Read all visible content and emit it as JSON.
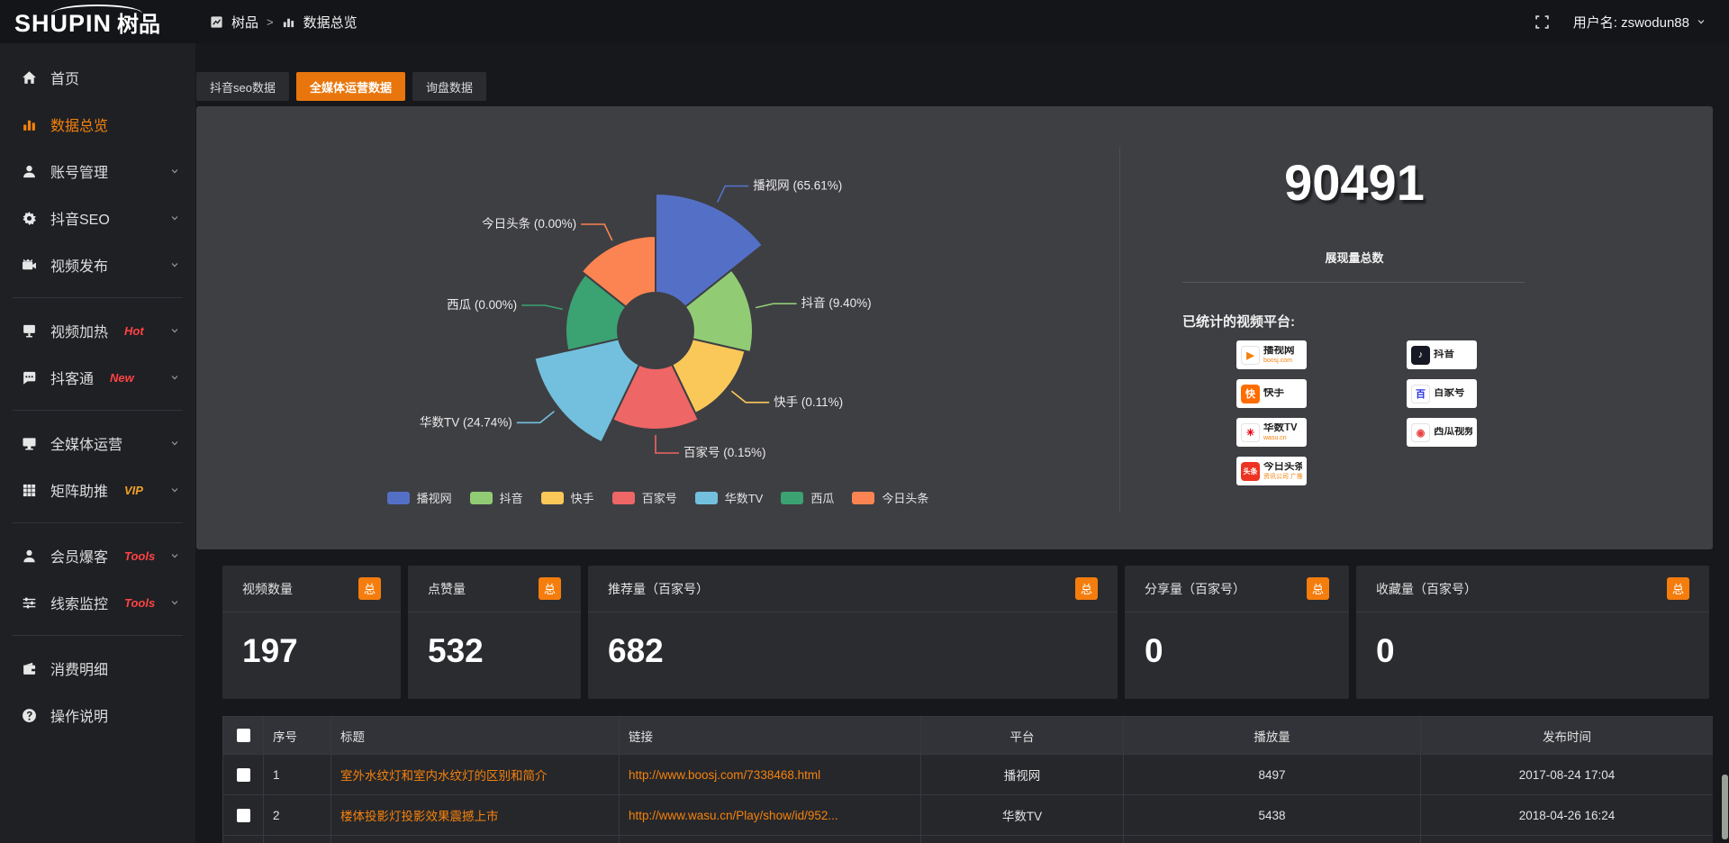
{
  "topbar": {
    "logo_main": "SHUPIN",
    "logo_sub": "树品",
    "breadcrumb": {
      "part1": "树品",
      "sep": ">",
      "part2": "数据总览"
    },
    "user_label": "用户名: zswodun88"
  },
  "sidebar": {
    "groups": [
      {
        "items": [
          {
            "label": "首页",
            "icon": "home-icon",
            "active": false,
            "chevron": false
          },
          {
            "label": "数据总览",
            "icon": "bar-chart-icon",
            "active": true,
            "chevron": false
          },
          {
            "label": "账号管理",
            "icon": "user-icon",
            "active": false,
            "chevron": true
          },
          {
            "label": "抖音SEO",
            "icon": "gear-icon",
            "active": false,
            "chevron": true
          },
          {
            "label": "视频发布",
            "icon": "video-icon",
            "active": false,
            "chevron": true
          }
        ]
      },
      {
        "items": [
          {
            "label": "视频加热",
            "icon": "screen-icon",
            "tag": "Hot",
            "tag_color": "#ff4343",
            "chevron": true
          },
          {
            "label": "抖客通",
            "icon": "chat-icon",
            "tag": "New",
            "tag_color": "#ff4343",
            "chevron": true
          }
        ]
      },
      {
        "items": [
          {
            "label": "全媒体运营",
            "icon": "monitor-icon",
            "chevron": true
          },
          {
            "label": "矩阵助推",
            "icon": "grid-icon",
            "tag": "VIP",
            "tag_color": "#f0a125",
            "chevron": true
          }
        ]
      },
      {
        "items": [
          {
            "label": "会员爆客",
            "icon": "member-icon",
            "tag": "Tools",
            "tag_color": "#ff4343",
            "chevron": true
          },
          {
            "label": "线索监控",
            "icon": "sliders-icon",
            "tag": "Tools",
            "tag_color": "#ff4343",
            "chevron": true
          }
        ]
      },
      {
        "items": [
          {
            "label": "消费明细",
            "icon": "wallet-icon",
            "chevron": false
          },
          {
            "label": "操作说明",
            "icon": "help-icon",
            "chevron": false
          }
        ]
      }
    ]
  },
  "tabs": [
    {
      "label": "抖音seo数据",
      "active": false
    },
    {
      "label": "全媒体运营数据",
      "active": true
    },
    {
      "label": "询盘数据",
      "active": false
    }
  ],
  "chart_data": {
    "type": "pie",
    "style": "nightingale-rose-donut",
    "label_format": "{name} ({percent}%)",
    "legend_position": "bottom",
    "items": [
      {
        "name": "播视网",
        "percent": 65.61,
        "color": "#5470c6"
      },
      {
        "name": "抖音",
        "percent": 9.4,
        "color": "#91cc75"
      },
      {
        "name": "快手",
        "percent": 0.11,
        "color": "#fac858"
      },
      {
        "name": "百家号",
        "percent": 0.15,
        "color": "#ee6666"
      },
      {
        "name": "华数TV",
        "percent": 24.74,
        "color": "#73c0de"
      },
      {
        "name": "西瓜",
        "percent": 0.0,
        "color": "#3ba272"
      },
      {
        "name": "今日头条",
        "percent": 0.0,
        "color": "#fc8452"
      }
    ],
    "legend": [
      "播视网",
      "抖音",
      "快手",
      "百家号",
      "华数TV",
      "西瓜",
      "今日头条"
    ]
  },
  "summary": {
    "total_value": "90491",
    "total_label": "展现量总数",
    "platforms_title": "已统计的视频平台:",
    "platform_columns": [
      [
        {
          "label": "播视网",
          "sub": "boosj.com",
          "icon": "boosj-logo-icon",
          "icon_bg": "#ffffff",
          "icon_fg": "#f5820c",
          "glyph": "▶"
        },
        {
          "label": "快手",
          "sub": "",
          "icon": "kuaishou-logo-icon",
          "icon_bg": "#ff6d00",
          "icon_fg": "#ffffff",
          "glyph": "快"
        },
        {
          "label": "华数TV",
          "sub": "wasu.cn",
          "icon": "wasu-logo-icon",
          "icon_bg": "#ffffff",
          "icon_fg": "#e60012",
          "glyph": "✳"
        },
        {
          "label": "今日头条",
          "sub": "资讯公司 广推全球",
          "icon": "toutiao-logo-icon",
          "icon_bg": "#ed3321",
          "icon_fg": "#ffffff",
          "glyph": "头条"
        }
      ],
      [
        {
          "label": "抖音",
          "sub": "",
          "icon": "douyin-logo-icon",
          "icon_bg": "#161823",
          "icon_fg": "#ffffff",
          "glyph": "♪"
        },
        {
          "label": "百家号",
          "sub": "",
          "icon": "baijiahao-logo-icon",
          "icon_bg": "#ffffff",
          "icon_fg": "#2932e1",
          "glyph": "百"
        },
        {
          "label": "西瓜视频",
          "sub": "",
          "icon": "xigua-logo-icon",
          "icon_bg": "#ffffff",
          "icon_fg": "#e8433e",
          "glyph": "◉"
        }
      ]
    ]
  },
  "stat_cards": [
    {
      "label": "视频数量",
      "badge": "总",
      "value": "197"
    },
    {
      "label": "点赞量",
      "badge": "总",
      "value": "532"
    },
    {
      "label": "推荐量（百家号）",
      "badge": "总",
      "value": "682"
    },
    {
      "label": "分享量（百家号）",
      "badge": "总",
      "value": "0"
    },
    {
      "label": "收藏量（百家号）",
      "badge": "总",
      "value": "0"
    }
  ],
  "table": {
    "headers": [
      "序号",
      "标题",
      "链接",
      "平台",
      "播放量",
      "发布时间"
    ],
    "rows": [
      {
        "seq": "1",
        "title": "室外水纹灯和室内水纹灯的区别和简介",
        "link": "http://www.boosj.com/7338468.html",
        "platform": "播视网",
        "plays": "8497",
        "time": "2017-08-24 17:04"
      },
      {
        "seq": "2",
        "title": "楼体投影灯投影效果震撼上市",
        "link": "http://www.wasu.cn/Play/show/id/952...",
        "platform": "华数TV",
        "plays": "5438",
        "time": "2018-04-26 16:24"
      },
      {
        "seq": "",
        "title": "",
        "link": "",
        "platform": "",
        "plays": "",
        "time": ""
      }
    ]
  },
  "colors": {
    "accent_orange": "#f5820c",
    "tab_active_bg": "#e8760c",
    "panel_bg": "#3e3f43",
    "card_bg": "#2b2c30",
    "link_orange": "#f5820c"
  }
}
